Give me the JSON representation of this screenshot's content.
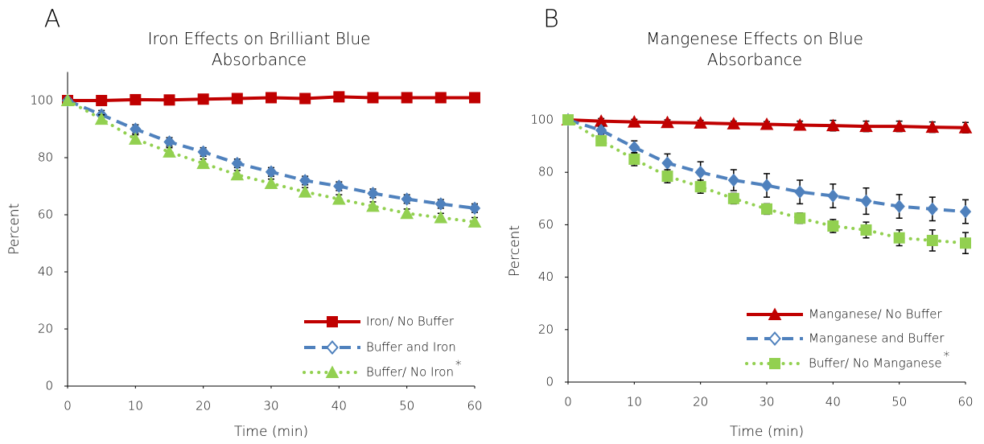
{
  "chart_data": [
    {
      "type": "line",
      "panel_label": "A",
      "title": "Iron Effects on Brilliant Blue Absorbance",
      "xlabel": "Time (min)",
      "ylabel": "Percent",
      "annotation": "*",
      "legend": "lower right",
      "x": [
        0,
        5,
        10,
        15,
        20,
        25,
        30,
        35,
        40,
        45,
        50,
        55,
        60
      ],
      "xlim": [
        0,
        60
      ],
      "xticks": [
        0,
        10,
        20,
        30,
        40,
        50,
        60
      ],
      "ylim": [
        0,
        110
      ],
      "yticks": [
        0,
        20,
        40,
        60,
        80,
        100
      ],
      "series": [
        {
          "name": "Iron/ No Buffer",
          "color": "#c00000",
          "marker": "square",
          "dash": "solid",
          "values": [
            100,
            100,
            100.3,
            100.2,
            100.5,
            100.7,
            101,
            100.7,
            101.3,
            101,
            101,
            101,
            101
          ],
          "errors": [
            1,
            1.5,
            1.5,
            1.5,
            1.5,
            1.5,
            1.5,
            1.5,
            1.5,
            1.5,
            1.5,
            1.5,
            1.5
          ]
        },
        {
          "name": "Buffer and Iron",
          "color": "#4f81bd",
          "marker": "diamond",
          "dash": "dashed",
          "values": [
            100,
            95,
            90,
            85.5,
            82,
            78,
            75,
            72,
            70,
            67.5,
            65.5,
            63.8,
            62.3
          ],
          "errors": [
            0.5,
            1.5,
            1.5,
            1.5,
            1.5,
            1.5,
            1.5,
            1.5,
            1.5,
            1.5,
            1.5,
            1.5,
            1.5
          ]
        },
        {
          "name": "Buffer/ No Iron",
          "color": "#92d050",
          "marker": "triangle",
          "dash": "dotted",
          "values": [
            100,
            93.5,
            86.5,
            82,
            78,
            74,
            71,
            68,
            65.5,
            63,
            60.5,
            59,
            57.5
          ],
          "errors": [
            0.5,
            1.5,
            1.5,
            1.5,
            1.5,
            1.5,
            1.5,
            1.5,
            1.5,
            1.5,
            1.5,
            1.5,
            1.5
          ]
        }
      ]
    },
    {
      "type": "line",
      "panel_label": "B",
      "title": "Mangenese Effects on Blue Absorbance",
      "xlabel": "Time (min)",
      "ylabel": "Percent",
      "annotation": "*",
      "legend": "lower right",
      "x": [
        0,
        5,
        10,
        15,
        20,
        25,
        30,
        35,
        40,
        45,
        50,
        55,
        60
      ],
      "xlim": [
        0,
        60
      ],
      "xticks": [
        0,
        10,
        20,
        30,
        40,
        50,
        60
      ],
      "ylim": [
        0,
        100
      ],
      "yticks": [
        0,
        20,
        40,
        60,
        80,
        100
      ],
      "series": [
        {
          "name": "Manganese/ No Buffer",
          "color": "#c00000",
          "marker": "triangle",
          "dash": "solid",
          "values": [
            100,
            99.5,
            99.2,
            99,
            98.8,
            98.5,
            98.3,
            98,
            97.8,
            97.5,
            97.5,
            97.2,
            97
          ],
          "errors": [
            0.5,
            1,
            1,
            1,
            1,
            1,
            1,
            1.5,
            2,
            2,
            2,
            2,
            2
          ]
        },
        {
          "name": "Manganese and Buffer",
          "color": "#4f81bd",
          "marker": "diamond",
          "dash": "dashed",
          "values": [
            100,
            96,
            89.5,
            83.5,
            80,
            77,
            75,
            72.5,
            71,
            69,
            67,
            66,
            65
          ],
          "errors": [
            1,
            1.5,
            2.5,
            3.5,
            4,
            4,
            4.5,
            4.5,
            4.5,
            5,
            4.5,
            4.5,
            4.5
          ]
        },
        {
          "name": "Buffer/ No Manganese",
          "color": "#92d050",
          "marker": "square",
          "dash": "dotted",
          "values": [
            100,
            92,
            85,
            78.5,
            74.5,
            70,
            66,
            62.5,
            59.5,
            58,
            55,
            54,
            53
          ],
          "errors": [
            0.5,
            1.5,
            2.5,
            2.5,
            2.5,
            2,
            2,
            2,
            2.5,
            3,
            3,
            4,
            4
          ]
        }
      ]
    }
  ]
}
